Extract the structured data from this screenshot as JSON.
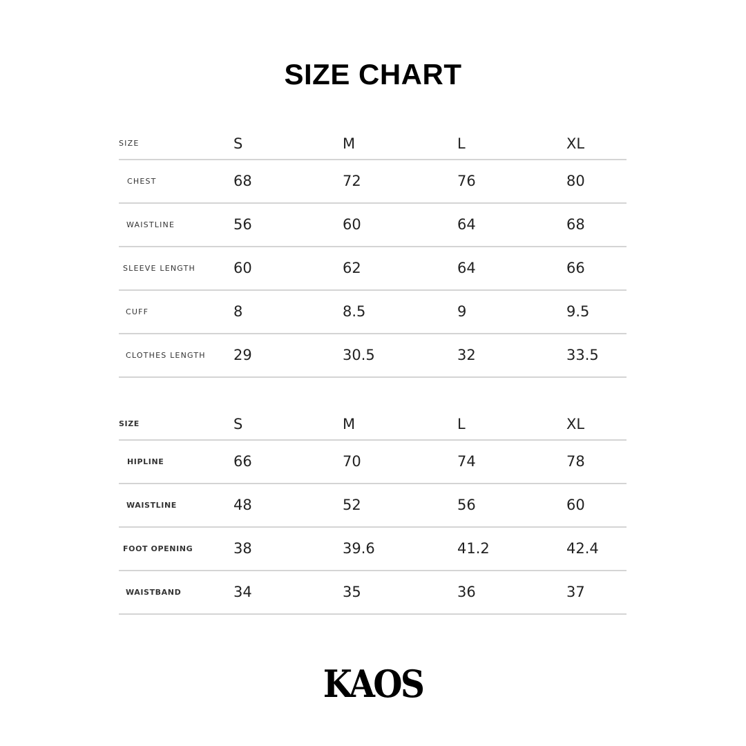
{
  "title": "SIZE CHART",
  "tops": {
    "header": [
      "SIZE",
      "S",
      "M",
      "L",
      "XL"
    ],
    "rows": [
      {
        "label": "CHEST",
        "values": [
          "68",
          "72",
          "76",
          "80"
        ]
      },
      {
        "label": "WAISTLINE",
        "values": [
          "56",
          "60",
          "64",
          "68"
        ]
      },
      {
        "label": "SLEEVE LENGTH",
        "values": [
          "60",
          "62",
          "64",
          "66"
        ]
      },
      {
        "label": "CUFF",
        "values": [
          "8",
          "8.5",
          "9",
          "9.5"
        ]
      },
      {
        "label": "CLOTHES LENGTH",
        "values": [
          "29",
          "30.5",
          "32",
          "33.5"
        ]
      }
    ]
  },
  "bottoms": {
    "header": [
      "SIZE",
      "S",
      "M",
      "L",
      "XL"
    ],
    "rows": [
      {
        "label": "HIPLINE",
        "values": [
          "66",
          "70",
          "74",
          "78"
        ]
      },
      {
        "label": "WAISTLINE",
        "values": [
          "48",
          "52",
          "56",
          "60"
        ]
      },
      {
        "label": "FOOT OPENING",
        "values": [
          "38",
          "39.6",
          "41.2",
          "42.4"
        ]
      },
      {
        "label": "WAISTBAND",
        "values": [
          "34",
          "35",
          "36",
          "37"
        ]
      }
    ]
  },
  "logo": "KAOS"
}
